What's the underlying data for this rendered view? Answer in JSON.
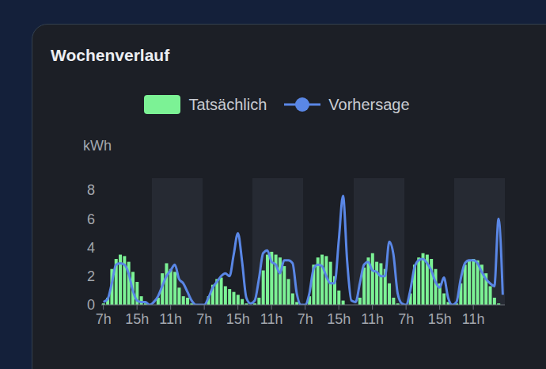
{
  "title": "Wochenverlauf",
  "chart_data": {
    "type": "bar",
    "y_label": "kWh",
    "legend": "top",
    "grid": false,
    "categories": [
      "7h",
      null,
      null,
      null,
      null,
      null,
      null,
      null,
      "15h",
      null,
      null,
      null,
      null,
      null,
      null,
      null,
      "11h",
      null,
      null,
      null,
      null,
      null,
      null,
      null,
      "7h",
      null,
      null,
      null,
      null,
      null,
      null,
      null,
      "15h",
      null,
      null,
      null,
      null,
      null,
      null,
      null,
      "11h",
      null,
      null,
      null,
      null,
      null,
      null,
      null,
      "7h",
      null,
      null,
      null,
      null,
      null,
      null,
      null,
      "15h",
      null,
      null,
      null,
      null,
      null,
      null,
      null,
      "11h",
      null,
      null,
      null,
      null,
      null,
      null,
      null,
      "7h",
      null,
      null,
      null,
      null,
      null,
      null,
      null,
      "15h",
      null,
      null,
      null,
      null,
      null,
      null,
      null,
      "11h",
      null,
      null,
      null,
      null,
      null,
      null,
      null
    ],
    "series": [
      {
        "name": "Tatsächlich",
        "type": "bar",
        "color": "#7cf295",
        "values": [
          0.1,
          0.5,
          2.5,
          3.2,
          3.5,
          3.4,
          3.0,
          2.3,
          1.6,
          0.6,
          0.1,
          0,
          0,
          0.5,
          2.2,
          2.9,
          2.5,
          2.3,
          1.2,
          0.6,
          0.5,
          0.1,
          0,
          0,
          0,
          0.6,
          1.4,
          1.8,
          1.9,
          1.3,
          1.1,
          0.9,
          0.7,
          0.4,
          0.1,
          0,
          0.1,
          0.5,
          2.4,
          3.5,
          3.7,
          3.5,
          3.3,
          2.7,
          1.8,
          0.8,
          0.2,
          0,
          0,
          0.6,
          2.8,
          3.3,
          3.5,
          3.4,
          3.0,
          2.0,
          1.0,
          0.3,
          0,
          0,
          0,
          0.5,
          2.6,
          3.3,
          3.6,
          3.0,
          2.9,
          2.5,
          1.5,
          0.5,
          0.1,
          0,
          0,
          0.8,
          2.8,
          3.3,
          3.6,
          3.5,
          3.2,
          2.5,
          1.5,
          0.8,
          0.2,
          0,
          0.1,
          1.5,
          2.8,
          3.1,
          3.2,
          3.1,
          2.8,
          2.2,
          1.3,
          0.5,
          0.1,
          0
        ]
      },
      {
        "name": "Vorhersage",
        "type": "line",
        "color": "#5a87e6",
        "values": [
          0.2,
          0.4,
          1.5,
          2.8,
          2.9,
          2.8,
          2.2,
          1.0,
          0.3,
          0.2,
          0.2,
          0,
          0.2,
          0.6,
          1.3,
          2.0,
          2.4,
          2.8,
          1.8,
          1.5,
          0.9,
          0.3,
          0,
          0,
          0,
          0.5,
          1.2,
          1.6,
          2.0,
          2.2,
          2.0,
          3.5,
          5.0,
          3.0,
          0.5,
          0.1,
          0.3,
          1.8,
          3.6,
          3.8,
          3.0,
          2.8,
          2.2,
          3.1,
          3.1,
          2.9,
          0.8,
          0,
          0,
          0.8,
          2.5,
          2.8,
          2.7,
          2.0,
          1.5,
          1.5,
          4.5,
          7.6,
          3.0,
          0.3,
          0.2,
          1.5,
          2.8,
          3.0,
          2.4,
          2.3,
          2.0,
          2.0,
          4.4,
          3.5,
          0.8,
          0.1,
          0,
          1.0,
          2.6,
          3.1,
          3.2,
          2.9,
          2.4,
          1.6,
          1.2,
          1.9,
          0.5,
          0,
          0.2,
          1.8,
          2.9,
          3.1,
          3.1,
          2.9,
          2.3,
          1.8,
          1.5,
          1.3,
          6.0,
          0.7
        ]
      }
    ],
    "ylim": [
      0,
      8
    ],
    "yticks": [
      0,
      2,
      4,
      6,
      8
    ]
  }
}
